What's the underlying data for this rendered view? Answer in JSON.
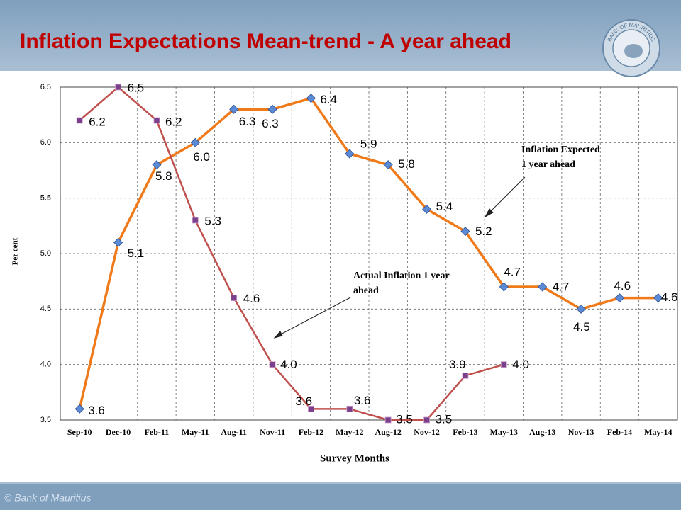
{
  "chart_data": {
    "type": "line",
    "title": "Inflation Expectations Mean-trend - A year ahead",
    "x_label": "Survey Months",
    "y_label": "Per cent",
    "categories": [
      "Sep-10",
      "Dec-10",
      "Feb-11",
      "May-11",
      "Aug-11",
      "Nov-11",
      "Feb-12",
      "May-12",
      "Aug-12",
      "Nov-12",
      "Feb-13",
      "May-13",
      "Aug-13",
      "Nov-13",
      "Feb-14",
      "May-14"
    ],
    "series": [
      {
        "name": "Inflation Expected 1 year ahead",
        "color": "#f07a1a",
        "marker_color": "#5b8bd6",
        "marker": "diamond",
        "values": [
          3.6,
          5.1,
          5.8,
          6.0,
          6.3,
          6.3,
          6.4,
          5.9,
          5.8,
          5.4,
          5.2,
          4.7,
          4.7,
          4.5,
          4.6,
          4.6
        ],
        "value_labels": [
          "3.6",
          "5.1",
          "5.8",
          "6.0",
          "6.3",
          "6.3",
          "6.4",
          "5.9",
          "5.8",
          "5.4",
          "5.2",
          "4.7",
          "4.7",
          "4.5",
          "4.6",
          "4.6"
        ]
      },
      {
        "name": "Actual Inflation 1 year ahead",
        "color": "#c0504d",
        "marker_color": "#7b3f8c",
        "marker": "square",
        "values": [
          6.2,
          6.5,
          6.2,
          5.3,
          4.6,
          4.0,
          3.6,
          3.6,
          3.5,
          3.5,
          3.9,
          4.0,
          null,
          null,
          null,
          null
        ],
        "value_labels": [
          "6.2",
          "6.5",
          "6.2",
          "5.3",
          "4.6",
          "4.0",
          "3.6",
          "3.6",
          "3.5",
          "3.5",
          "3.9",
          "4.0",
          null,
          null,
          null,
          null
        ]
      }
    ],
    "annotations": [
      [
        "Inflation Expected",
        "1 year ahead"
      ],
      [
        "Actual Inflation  1 year",
        "ahead"
      ]
    ],
    "ylim": [
      3.5,
      6.5
    ],
    "yticks": [
      3.5,
      {
        "value": 4,
        "label": "4.0"
      },
      4.5,
      {
        "value": 5,
        "label": "5.0"
      },
      5.5,
      {
        "value": 6,
        "label": "6.0"
      },
      6.5
    ],
    "grid": true
  },
  "slide": {
    "footer": "© Bank of Mauritius",
    "logo_text": "BANK OF MAURITIUS"
  }
}
